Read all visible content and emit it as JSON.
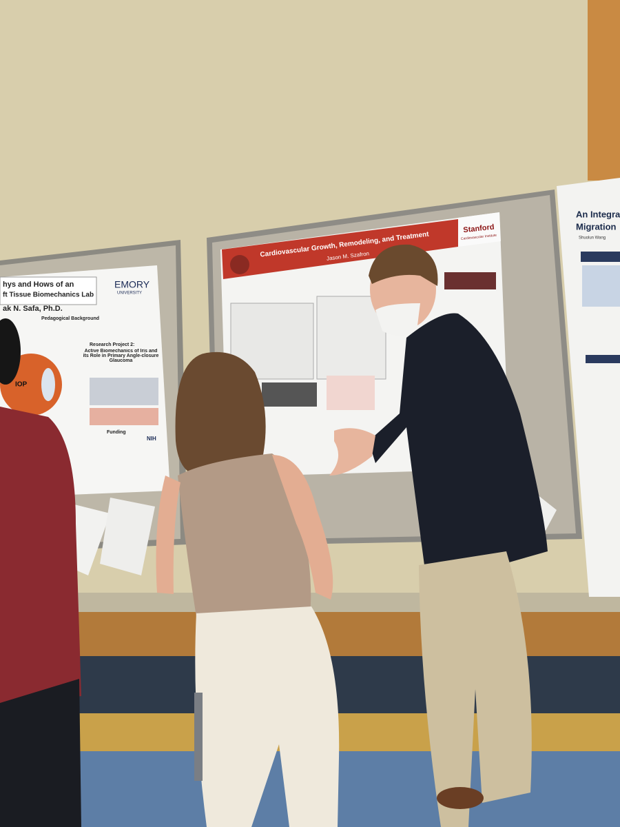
{
  "posters": [
    {
      "title_line_1": "hys and Hows of an",
      "title_line_2": "ft Tissue Biomechanics Lab",
      "author": "ak N. Safa, Ph.D.",
      "institution": "EMORY",
      "institution_sub": "UNIVERSITY",
      "section_1": "Pedagogical Background",
      "section_2": "Research Project 2:",
      "section_2_title": "Active Biomechanics of Iris and its Role in Primary Angle-closure Glaucoma",
      "section_3": "Funding",
      "figure_label": "IOP",
      "funder": "NIH"
    },
    {
      "title": "Cardiovascular Growth, Remodeling, and Treatment",
      "author": "Jason M. Szafron",
      "institution": "Stanford",
      "institution_sub": "Cardiovascular Institute"
    },
    {
      "title_line_1": "An Integrat",
      "title_line_2": "Migration",
      "author": "Shuolun Wang"
    }
  ]
}
